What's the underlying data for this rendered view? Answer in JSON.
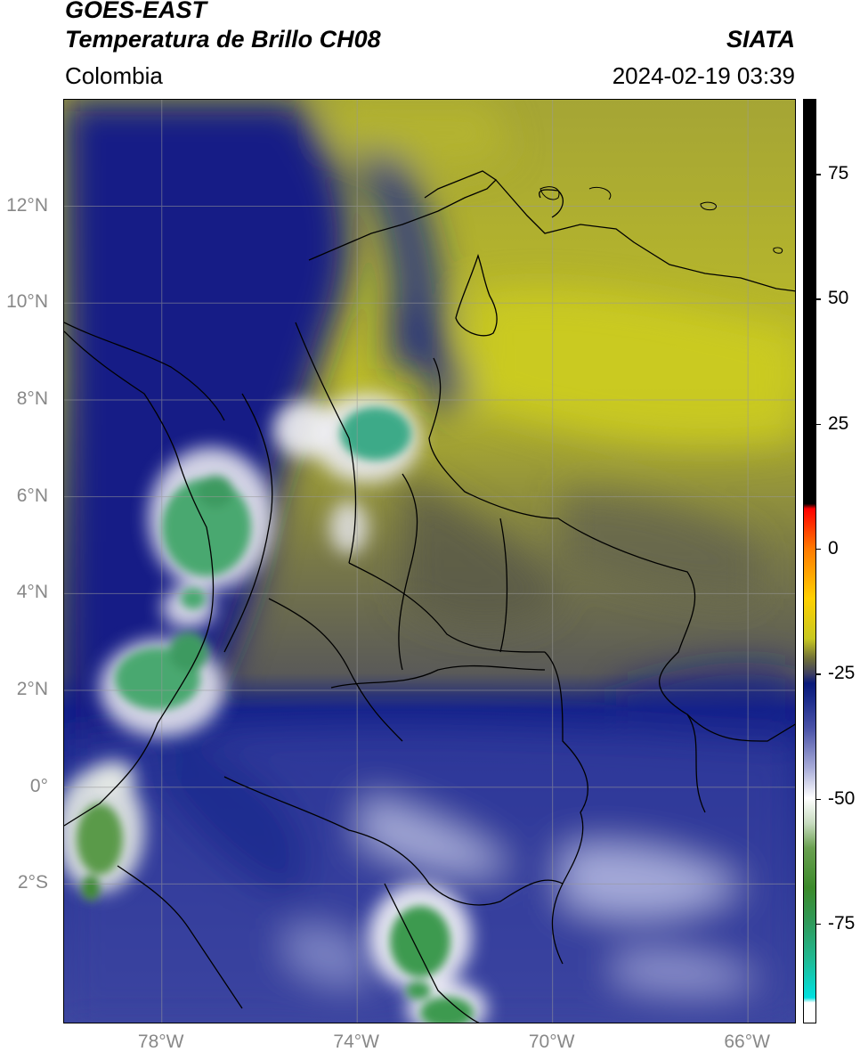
{
  "header": {
    "satellite": "GOES-EAST",
    "product": "Temperatura de Brillo CH08",
    "agency": "SIATA",
    "region": "Colombia",
    "datetime": "2024-02-19 03:39"
  },
  "map": {
    "lat_range": [
      -4.9,
      14.2
    ],
    "lon_range": [
      -80.0,
      -65.0
    ],
    "lat_ticks": [
      {
        "value": 12,
        "label": "12°N"
      },
      {
        "value": 10,
        "label": "10°N"
      },
      {
        "value": 8,
        "label": "8°N"
      },
      {
        "value": 6,
        "label": "6°N"
      },
      {
        "value": 4,
        "label": "4°N"
      },
      {
        "value": 2,
        "label": "2°N"
      },
      {
        "value": 0,
        "label": "0°"
      },
      {
        "value": -2,
        "label": "2°S"
      }
    ],
    "lon_ticks": [
      {
        "value": -78,
        "label": "78°W"
      },
      {
        "value": -74,
        "label": "74°W"
      },
      {
        "value": -70,
        "label": "70°W"
      },
      {
        "value": -66,
        "label": "66°W"
      }
    ],
    "grid": true
  },
  "colorbar": {
    "range": [
      -95,
      90
    ],
    "ticks": [
      {
        "value": 75,
        "label": "75"
      },
      {
        "value": 50,
        "label": "50"
      },
      {
        "value": 25,
        "label": "25"
      },
      {
        "value": 0,
        "label": "0"
      },
      {
        "value": -25,
        "label": "-25"
      },
      {
        "value": -50,
        "label": "-50"
      },
      {
        "value": -75,
        "label": "-75"
      }
    ],
    "stops": [
      {
        "value": -95,
        "color": "#ffffff"
      },
      {
        "value": -91,
        "color": "#ffffff"
      },
      {
        "value": -90,
        "color": "#00e0e0"
      },
      {
        "value": -82,
        "color": "#20b890"
      },
      {
        "value": -75,
        "color": "#2f9a5a"
      },
      {
        "value": -68,
        "color": "#3b8a2a"
      },
      {
        "value": -60,
        "color": "#6aa050"
      },
      {
        "value": -55,
        "color": "#c8dcc0"
      },
      {
        "value": -50,
        "color": "#ffffff"
      },
      {
        "value": -44,
        "color": "#a8acd8"
      },
      {
        "value": -36,
        "color": "#4a52a8"
      },
      {
        "value": -30,
        "color": "#1a2a8a"
      },
      {
        "value": -27,
        "color": "#0a1a7a"
      },
      {
        "value": -25,
        "color": "#404060"
      },
      {
        "value": -22,
        "color": "#707038"
      },
      {
        "value": -18,
        "color": "#c8c820"
      },
      {
        "value": -10,
        "color": "#ffd000"
      },
      {
        "value": 0,
        "color": "#ff7a00"
      },
      {
        "value": 8,
        "color": "#ff0000"
      },
      {
        "value": 9,
        "color": "#000000"
      },
      {
        "value": 90,
        "color": "#000000"
      }
    ]
  }
}
